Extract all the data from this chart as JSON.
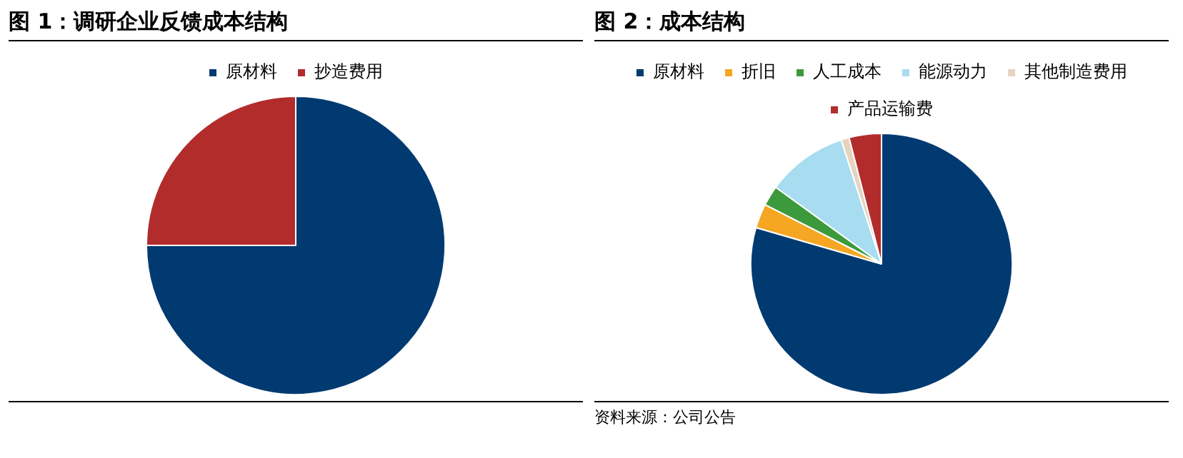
{
  "chart_data": [
    {
      "type": "pie",
      "title": "图 1：调研企业反馈成本结构",
      "categories": [
        "原材料",
        "抄造费用"
      ],
      "values": [
        75,
        25
      ],
      "colors": [
        "#003a70",
        "#b22c2c"
      ],
      "legend": "top"
    },
    {
      "type": "pie",
      "title": "图 2：成本结构",
      "categories": [
        "原材料",
        "折旧",
        "人工成本",
        "能源动力",
        "其他制造费用",
        "产品运输费"
      ],
      "values": [
        79.5,
        3,
        2.5,
        10,
        1,
        4
      ],
      "colors": [
        "#003a70",
        "#f5a623",
        "#3c9a3c",
        "#a8dcf0",
        "#e6d3c0",
        "#b22c2c"
      ],
      "legend": "top",
      "annotations": [
        "资料来源：公司公告"
      ]
    }
  ]
}
